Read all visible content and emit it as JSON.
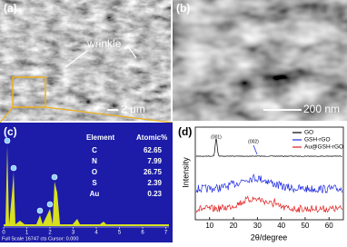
{
  "panels": {
    "a": {
      "label": "(a)",
      "annotation": "wrinkle",
      "scale_bar": "2 μm"
    },
    "b": {
      "label": "(b)",
      "scale_bar": "200 nm"
    },
    "c": {
      "label": "(c)",
      "table": {
        "header": [
          "Element",
          "Atomic%"
        ],
        "rows": [
          [
            "C",
            "62.65"
          ],
          [
            "N",
            "7.99"
          ],
          [
            "O",
            "26.75"
          ],
          [
            "S",
            "2.39"
          ],
          [
            "Au",
            "0.23"
          ]
        ]
      },
      "xticks": [
        0,
        1,
        2,
        3,
        4,
        5,
        6,
        7
      ],
      "footer": "Full Scale 16747 cts Cursor: 0.000"
    },
    "d": {
      "label": "(d)",
      "y_label": "Intensity",
      "x_label": "2θ/degree",
      "xlim": [
        4,
        66
      ],
      "xticks": [
        10,
        20,
        30,
        40,
        50,
        60
      ],
      "peaks": [
        "(001)",
        "(002)"
      ],
      "legend": [
        {
          "name": "GO",
          "color": "#000000"
        },
        {
          "name": "GSH-rGO",
          "color": "#1f2be0"
        },
        {
          "name": "Au@GSH-rGO",
          "color": "#e01f1f"
        }
      ]
    }
  }
}
